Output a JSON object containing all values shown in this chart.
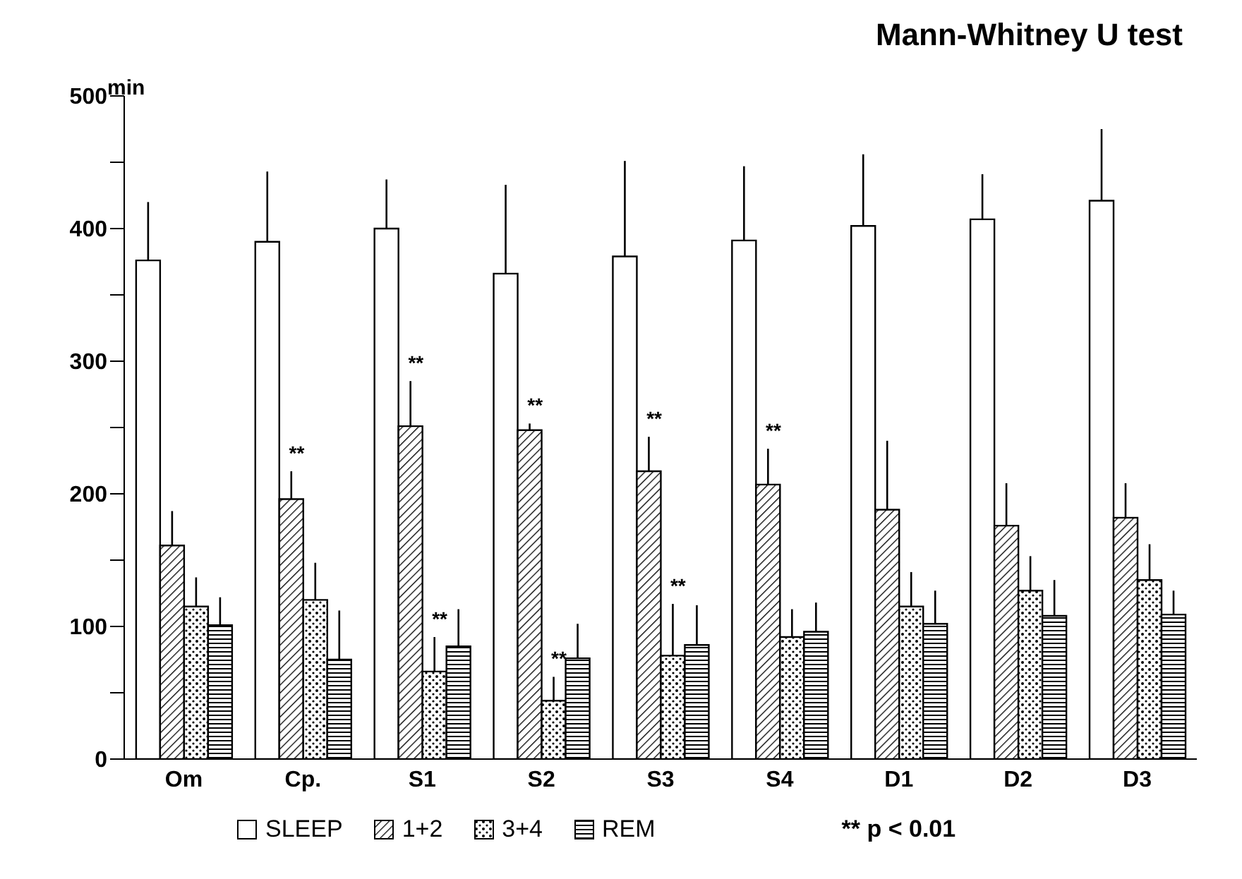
{
  "chart_data": {
    "type": "bar",
    "title": "Mann-Whitney U test",
    "ylabel": "min",
    "categories": [
      "Om",
      "Cp.",
      "S1",
      "S2",
      "S3",
      "S4",
      "D1",
      "D2",
      "D3"
    ],
    "series": [
      {
        "name": "SLEEP",
        "color": "#000000",
        "values": [
          376,
          390,
          400,
          366,
          379,
          391,
          402,
          407,
          421
        ],
        "errors": [
          [
            376,
            420
          ],
          [
            390,
            443
          ],
          [
            400,
            437
          ],
          [
            366,
            433
          ],
          [
            379,
            451
          ],
          [
            391,
            447
          ],
          [
            402,
            456
          ],
          [
            407,
            441
          ],
          [
            421,
            475
          ]
        ]
      },
      {
        "name": "1+2",
        "color": "#000000",
        "values": [
          161,
          196,
          251,
          248,
          217,
          207,
          188,
          176,
          182
        ],
        "errors": [
          [
            161,
            187
          ],
          [
            196,
            217
          ],
          [
            251,
            285
          ],
          [
            248,
            253
          ],
          [
            217,
            243
          ],
          [
            207,
            234
          ],
          [
            188,
            240
          ],
          [
            176,
            208
          ],
          [
            182,
            208
          ]
        ]
      },
      {
        "name": "3+4",
        "color": "#000000",
        "values": [
          115,
          120,
          66,
          44,
          78,
          92,
          115,
          127,
          135
        ],
        "errors": [
          [
            115,
            137
          ],
          [
            120,
            148
          ],
          [
            66,
            92
          ],
          [
            44,
            62
          ],
          [
            78,
            117
          ],
          [
            92,
            113
          ],
          [
            115,
            141
          ],
          [
            127,
            153
          ],
          [
            135,
            162
          ]
        ]
      },
      {
        "name": "REM",
        "color": "#000000",
        "values": [
          101,
          75,
          85,
          76,
          86,
          96,
          102,
          108,
          109
        ],
        "errors": [
          [
            101,
            122
          ],
          [
            75,
            112
          ],
          [
            85,
            113
          ],
          [
            76,
            102
          ],
          [
            86,
            116
          ],
          [
            96,
            118
          ],
          [
            102,
            127
          ],
          [
            108,
            135
          ],
          [
            109,
            127
          ]
        ]
      }
    ],
    "ylim": [
      0,
      500
    ],
    "yticks": [
      0,
      {
        "value": 50,
        "label": null
      },
      100,
      {
        "value": 150,
        "label": null
      },
      200,
      {
        "value": 250,
        "label": null
      },
      300,
      {
        "value": 350,
        "label": null
      },
      400,
      {
        "value": 450,
        "label": null
      },
      500
    ],
    "grid": false,
    "legend": "bottom",
    "annotations": [
      {
        "text": "**",
        "x": "Cp.",
        "y": 196
      },
      {
        "text": "**",
        "x": "S1",
        "y": 251
      },
      {
        "text": "**",
        "x": "S1",
        "y": 66
      },
      {
        "text": "**",
        "x": "S2",
        "y": 248
      },
      {
        "text": "**",
        "x": "S2",
        "y": 44
      },
      {
        "text": "**",
        "x": "S3",
        "y": 217
      },
      {
        "text": "**",
        "x": "S3",
        "y": 117
      },
      {
        "text": "**",
        "x": "S4",
        "y": 207
      },
      "** p < 0.01"
    ]
  }
}
